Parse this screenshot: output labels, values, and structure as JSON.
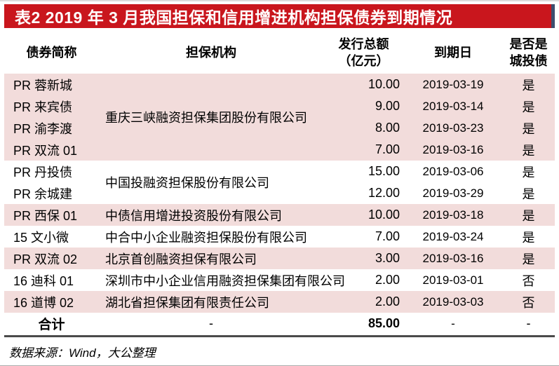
{
  "title": "表2  2019 年 3 月我国担保和信用增进机构担保债券到期情况",
  "columns": [
    {
      "label": "债券简称"
    },
    {
      "label": "担保机构"
    },
    {
      "label": "发行总额",
      "label2": "（亿元）"
    },
    {
      "label": "到期日"
    },
    {
      "label": "是否是",
      "label2": "城投债"
    }
  ],
  "rows": [
    {
      "name": "PR 蓉新城",
      "guarantor": "重庆三峡融资担保集团股份有限公司",
      "gspan": 4,
      "amount": "10.00",
      "date": "2019-03-19",
      "urban": "是",
      "shade": true
    },
    {
      "name": "PR 来宾债",
      "amount": "9.00",
      "date": "2019-03-14",
      "urban": "是",
      "shade": true
    },
    {
      "name": "PR 渝李渡",
      "amount": "8.00",
      "date": "2019-03-23",
      "urban": "是",
      "shade": true
    },
    {
      "name": "PR 双流 01",
      "amount": "7.00",
      "date": "2019-03-16",
      "urban": "是",
      "shade": true
    },
    {
      "name": "PR 丹投债",
      "guarantor": "中国投融资担保股份有限公司",
      "gspan": 2,
      "amount": "15.00",
      "date": "2019-03-06",
      "urban": "是",
      "shade": false
    },
    {
      "name": "PR 余城建",
      "amount": "12.00",
      "date": "2019-03-29",
      "urban": "是",
      "shade": false
    },
    {
      "name": "PR 西保 01",
      "guarantor": "中债信用增进投资股份有限公司",
      "gspan": 1,
      "amount": "10.00",
      "date": "2019-03-18",
      "urban": "是",
      "shade": true
    },
    {
      "name": "15 文小微",
      "guarantor": "中合中小企业融资担保股份有限公司",
      "gspan": 1,
      "amount": "7.00",
      "date": "2019-03-24",
      "urban": "是",
      "shade": false
    },
    {
      "name": "PR 双流 02",
      "guarantor": "北京首创融资担保有限公司",
      "gspan": 1,
      "amount": "3.00",
      "date": "2019-03-16",
      "urban": "是",
      "shade": true
    },
    {
      "name": "16 迪科 01",
      "guarantor": "深圳市中小企业信用融资担保集团有限公司",
      "gspan": 1,
      "amount": "2.00",
      "date": "2019-03-01",
      "urban": "否",
      "shade": false
    },
    {
      "name": "16 道博 02",
      "guarantor": "湖北省担保集团有限责任公司",
      "gspan": 1,
      "amount": "2.00",
      "date": "2019-03-03",
      "urban": "否",
      "shade": true
    }
  ],
  "total_row": {
    "label": "合计",
    "guarantor": "-",
    "amount": "85.00",
    "date": "-",
    "urban": "-"
  },
  "source_note": "数据来源：Wind，大公整理",
  "colors": {
    "banner_red": "#c9161d",
    "banner_edge_navy": "#3d4e6e",
    "row_shade_pink": "#f2dcdb",
    "total_rule_dark": "#4a4a4a",
    "bottom_rule_gray": "#ababab",
    "title_text": "#ffffff",
    "body_text": "#000000"
  }
}
